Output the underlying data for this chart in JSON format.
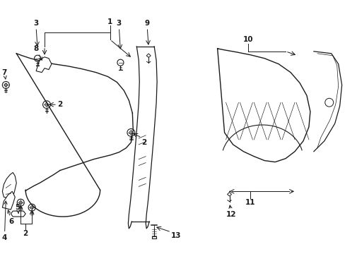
{
  "bg_color": "#ffffff",
  "line_color": "#1a1a1a",
  "figsize": [
    4.89,
    3.6
  ],
  "dpi": 100,
  "xlim": [
    0,
    4.89
  ],
  "ylim": [
    0,
    3.6
  ]
}
